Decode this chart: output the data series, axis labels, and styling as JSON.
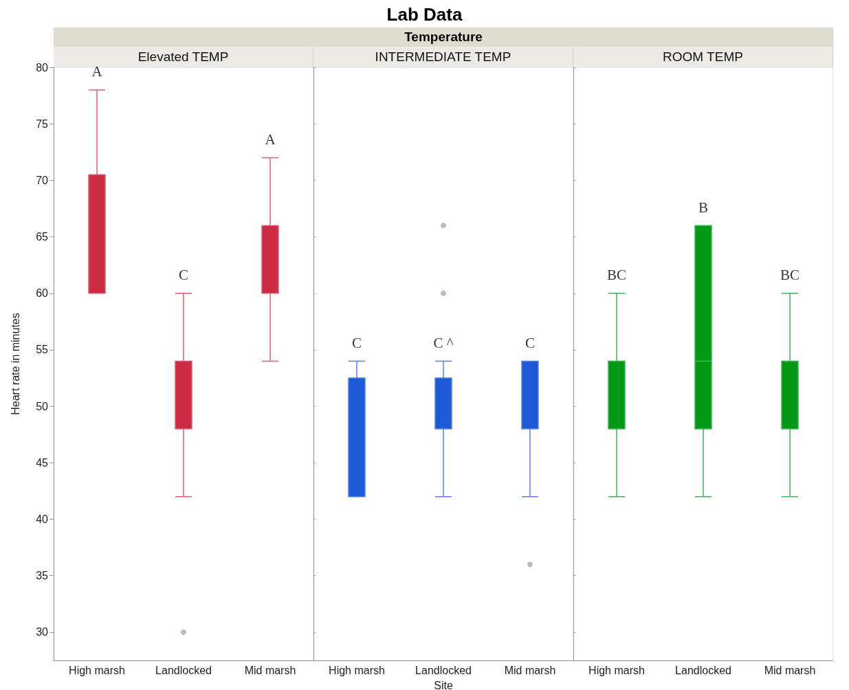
{
  "chart_data": [
    {
      "type": "box",
      "subtitle": "Elevated TEMP",
      "ylabel": "Heart rate in minutes",
      "categories": [
        "High marsh",
        "Landlocked",
        "Mid marsh"
      ],
      "series": [
        {
          "color": "#cc2b44",
          "boxes": [
            {
              "low": 60,
              "q1": 60,
              "median": 60,
              "q3": 70.5,
              "high": 78
            },
            {
              "low": 42,
              "q1": 48,
              "median": 48,
              "q3": 54,
              "high": 60,
              "outliers": [
                30
              ]
            },
            {
              "low": 54,
              "q1": 60,
              "median": 60,
              "q3": 66,
              "high": 72
            }
          ]
        }
      ],
      "annotations": [
        "A",
        "C",
        "A"
      ],
      "ylim": [
        27.5,
        80
      ],
      "yticks": [
        30,
        35,
        40,
        45,
        50,
        55,
        60,
        65,
        70,
        75,
        80
      ],
      "grid": false
    },
    {
      "type": "box",
      "title": "Lab Data",
      "subtitle": "INTERMEDIATE TEMP",
      "xlabel": "Site",
      "categories": [
        "High marsh",
        "Landlocked",
        "Mid marsh"
      ],
      "series": [
        {
          "color": "#1f5ad6",
          "boxes": [
            {
              "low": 42,
              "q1": 42,
              "median": 42,
              "q3": 52.5,
              "high": 54
            },
            {
              "low": 42,
              "q1": 48,
              "median": 48,
              "q3": 52.5,
              "high": 54,
              "outliers": [
                60,
                66
              ]
            },
            {
              "low": 42,
              "q1": 48,
              "median": 48,
              "q3": 54,
              "high": 54,
              "outliers": [
                36
              ]
            }
          ]
        }
      ],
      "annotations": [
        "Temperature",
        "C",
        "C ^",
        "C"
      ],
      "ylim": [
        27.5,
        80
      ],
      "yticks": [
        30,
        35,
        40,
        45,
        50,
        55,
        60,
        65,
        70,
        75,
        80
      ],
      "grid": false,
      "tick_labels": "x"
    },
    {
      "type": "box",
      "subtitle": "ROOM TEMP",
      "categories": [
        "High marsh",
        "Landlocked",
        "Mid marsh"
      ],
      "series": [
        {
          "color": "#009a17",
          "boxes": [
            {
              "low": 42,
              "q1": 48,
              "median": 48,
              "q3": 54,
              "high": 60
            },
            {
              "low": 42,
              "q1": 48,
              "median": 54,
              "q3": 66,
              "high": 66
            },
            {
              "low": 42,
              "q1": 48,
              "median": 48,
              "q3": 54,
              "high": 60
            }
          ]
        }
      ],
      "annotations": [
        "BC",
        "B",
        "BC"
      ],
      "ylim": [
        27.5,
        80
      ],
      "yticks": [
        30,
        35,
        40,
        45,
        50,
        55,
        60,
        65,
        70,
        75,
        80
      ],
      "grid": false,
      "tick_labels": "x"
    }
  ]
}
